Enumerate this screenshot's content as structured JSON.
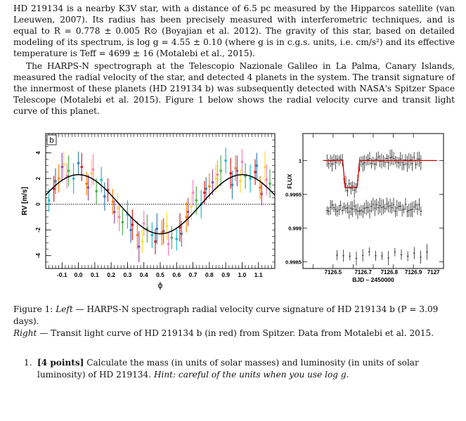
{
  "document": {
    "paragraph1": "HD 219134 is a nearby K3V star, with a distance of 6.5 pc measured by the Hipparcos satellite (van Leeuwen, 2007). Its radius has been precisely measured with interferometric techniques, and is equal to R = 0.778 ± 0.005 R⊙ (Boyajian et al. 2012). The gravity of this star, based on detailed modeling of its spectrum, is log g = 4.55 ± 0.10 (where g is in c.g.s. units, i.e. cm/s²) and its effective temperature is Teff = 4699 ± 16 (Motalebi et al., 2015).",
    "paragraph2": "The HARPS-N spectrograph at the Telescopio Nazionale Galileo in La Palma, Canary Islands, measured the radial velocity of the star, and detected 4 planets in the system. The transit signature of the innermost of these planets (HD 219134 b) was subsequently detected with NASA's Spitzer Space Telescope (Motalebi et al. 2015). Figure 1 below shows the radial velocity curve and transit light curve of this planet.",
    "caption_label": "Figure 1:",
    "caption_left_word": "Left",
    "caption_left_text": " — HARPS-N spectrograph radial velocity curve signature of HD 219134 b (P = 3.09 days).",
    "caption_right_word": "Right",
    "caption_right_text": " — Transit light curve of HD 219134 b (in red) from Spitzer. Data from Motalebi et al. 2015.",
    "problem_number": "1.",
    "problem_points": "[4 points]",
    "problem_text": " Calculate the mass (in units of solar masses) and luminosity (in units of solar luminosity) of HD 219134.",
    "problem_hint": " Hint: careful of the units when you use log g."
  },
  "chart_data": [
    {
      "type": "scatter",
      "panel_label": "b",
      "xlabel": "ϕ",
      "ylabel": "RV [m/s]",
      "xlim": [
        -0.2,
        1.2
      ],
      "ylim": [
        -5,
        5.5
      ],
      "xticks": [
        "-0.1",
        "0.0",
        "0.1",
        "0.2",
        "0.3",
        "0.4",
        "0.5",
        "0.6",
        "0.7",
        "0.8",
        "0.9",
        "1.0",
        "1.1"
      ],
      "yticks": [
        "4",
        "2",
        "0",
        "-2",
        "-4"
      ],
      "model": {
        "amplitude": 2.3,
        "phase_of_max": 0.0,
        "period_in_phase": 1.0,
        "color": "#000000"
      },
      "zero_line": true,
      "series": [
        {
          "color": "#e41a1c",
          "x": [
            -0.15,
            0.02,
            0.18,
            0.33,
            0.47,
            0.62,
            0.77,
            0.93,
            1.08
          ],
          "y": [
            1.2,
            2.9,
            1.1,
            -1.6,
            -2.9,
            -1.8,
            0.9,
            2.4,
            2.5
          ],
          "err": [
            1.0,
            1.1,
            0.9,
            1.2,
            1.0,
            1.1,
            0.9,
            1.2,
            1.0
          ]
        },
        {
          "color": "#ff7f00",
          "x": [
            -0.12,
            0.05,
            0.21,
            0.36,
            0.51,
            0.66,
            0.8,
            0.96,
            1.11
          ],
          "y": [
            2.0,
            1.6,
            0.2,
            -2.4,
            -2.2,
            -1.0,
            1.4,
            2.8,
            1.3
          ],
          "err": [
            1.1,
            0.9,
            1.0,
            1.1,
            1.0,
            1.2,
            1.0,
            1.0,
            0.9
          ]
        },
        {
          "color": "#ffd92f",
          "x": [
            -0.09,
            0.08,
            0.24,
            0.39,
            0.54,
            0.69,
            0.84,
            0.99,
            1.14
          ],
          "y": [
            3.1,
            2.4,
            -0.3,
            -2.9,
            -1.7,
            -0.2,
            2.0,
            1.8,
            2.9
          ],
          "err": [
            1.0,
            1.1,
            1.2,
            0.9,
            1.1,
            1.0,
            1.1,
            0.9,
            1.2
          ]
        },
        {
          "color": "#4daf4a",
          "x": [
            -0.06,
            0.11,
            0.27,
            0.42,
            0.57,
            0.72,
            0.87,
            1.02,
            1.17
          ],
          "y": [
            2.6,
            1.0,
            -1.4,
            -1.9,
            -2.6,
            0.3,
            2.6,
            2.2,
            1.6
          ],
          "err": [
            1.2,
            1.0,
            1.0,
            1.1,
            0.9,
            1.1,
            1.2,
            1.0,
            1.1
          ]
        },
        {
          "color": "#17becf",
          "x": [
            -0.18,
            -0.03,
            0.14,
            0.3,
            0.45,
            0.6,
            0.75,
            0.9,
            1.05
          ],
          "y": [
            0.3,
            2.0,
            1.9,
            -0.8,
            -2.4,
            -2.7,
            0.0,
            3.4,
            2.0
          ],
          "err": [
            0.9,
            1.2,
            1.0,
            1.1,
            1.0,
            0.9,
            1.1,
            1.0,
            1.1
          ]
        },
        {
          "color": "#377eb8",
          "x": [
            -0.14,
            0.0,
            0.16,
            0.32,
            0.48,
            0.63,
            0.78,
            0.94,
            1.09
          ],
          "y": [
            1.8,
            3.2,
            0.6,
            -2.0,
            -1.9,
            -2.3,
            1.2,
            1.5,
            3.0
          ],
          "err": [
            1.0,
            0.9,
            1.1,
            1.0,
            1.2,
            1.0,
            0.9,
            1.1,
            1.0
          ]
        },
        {
          "color": "#984ea3",
          "x": [
            -0.1,
            0.06,
            0.22,
            0.37,
            0.52,
            0.67,
            0.82,
            0.97,
            1.12
          ],
          "y": [
            2.9,
            1.3,
            -0.6,
            -3.3,
            -2.1,
            -0.6,
            1.7,
            2.6,
            0.8
          ],
          "err": [
            1.1,
            1.0,
            0.9,
            1.2,
            1.0,
            1.1,
            1.0,
            1.2,
            0.9
          ]
        },
        {
          "color": "#f781bf",
          "x": [
            -0.07,
            0.09,
            0.25,
            0.4,
            0.55,
            0.7,
            0.85,
            1.0,
            1.15
          ],
          "y": [
            2.2,
            2.7,
            -1.0,
            -1.5,
            -3.1,
            0.9,
            2.3,
            3.3,
            1.9
          ],
          "err": [
            1.0,
            1.2,
            1.1,
            1.0,
            0.9,
            1.0,
            1.1,
            1.0,
            1.2
          ]
        }
      ]
    },
    {
      "type": "scatter",
      "xlabel": "BJD – 2450000",
      "ylabel": "FLUX",
      "xlim": [
        7126.35,
        7127.05
      ],
      "ylim": [
        0.9984,
        1.0004
      ],
      "xticks": [
        "7126.5",
        "7126.7",
        "7126.8",
        "7126.9",
        "7127"
      ],
      "yticks": [
        "1",
        "0.9995",
        "0.999",
        "0.9985"
      ],
      "model_color": "#cc0000",
      "transit": {
        "ingress": 7126.56,
        "egress": 7126.62,
        "depth": 0.0004
      },
      "offsets": [
        0.0,
        -0.0007,
        -0.0014
      ],
      "point_color": "#000000"
    }
  ]
}
